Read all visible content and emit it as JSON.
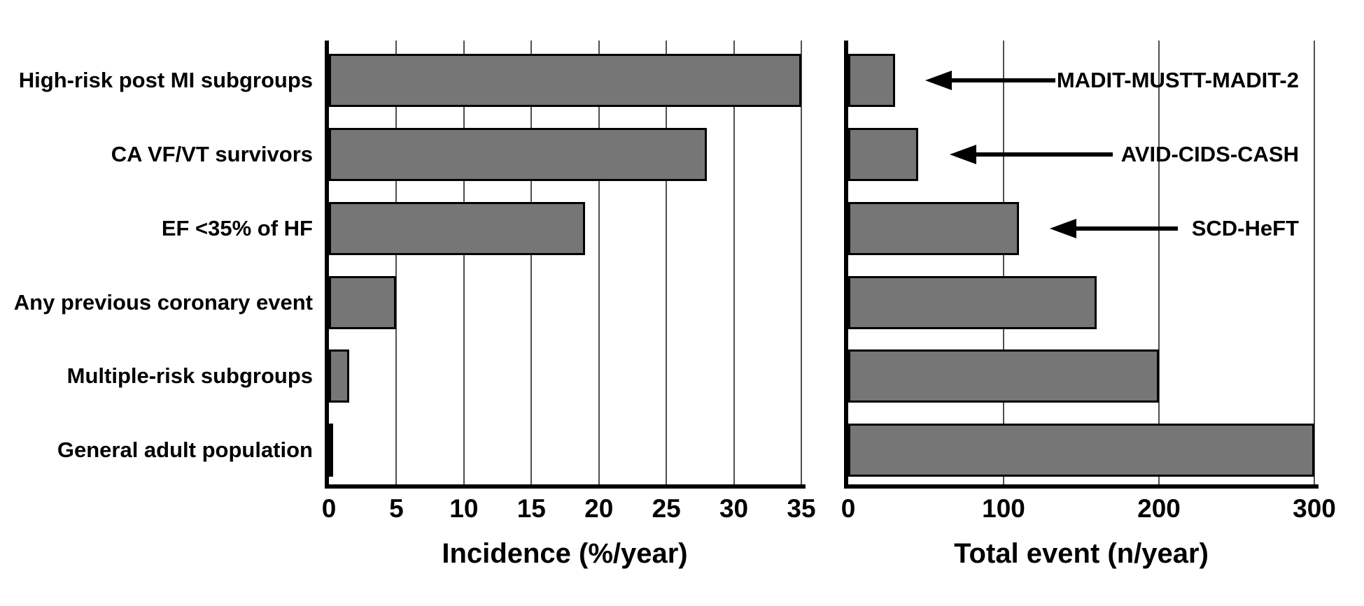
{
  "figure": {
    "background": "#ffffff",
    "bar_fill": "#767676",
    "bar_border": "#000000",
    "gridline_color": "#4f4f4f",
    "axis_color": "#000000",
    "text_color": "#000000"
  },
  "chart_data": [
    {
      "type": "bar",
      "orientation": "horizontal",
      "xlabel": "Incidence (%/year)",
      "categories": [
        "High-risk post MI subgroups",
        "CA VF/VT survivors",
        "EF <35% of HF",
        "Any previous coronary event",
        "Multiple-risk subgroups",
        "General adult population"
      ],
      "values": [
        35,
        28,
        19,
        5,
        1.5,
        0.2
      ],
      "xlim": [
        0,
        35
      ],
      "xticks": [
        0,
        5,
        10,
        15,
        20,
        25,
        30,
        35
      ],
      "grid": true,
      "legend": "none"
    },
    {
      "type": "bar",
      "orientation": "horizontal",
      "xlabel": "Total event (n/year)",
      "categories": [
        "High-risk post MI subgroups",
        "CA VF/VT survivors",
        "EF <35% of HF",
        "Any previous coronary event",
        "Multiple-risk subgroups",
        "General adult population"
      ],
      "values": [
        30,
        45,
        110,
        160,
        200,
        300
      ],
      "xlim": [
        0,
        300
      ],
      "xticks": [
        0,
        100,
        200,
        300
      ],
      "grid": true,
      "legend": "none",
      "annotations": [
        {
          "label": "MADIT-MUSTT-MADIT-2",
          "row": 0
        },
        {
          "label": "AVID-CIDS-CASH",
          "row": 1
        },
        {
          "label": "SCD-HeFT",
          "row": 2
        }
      ]
    }
  ]
}
